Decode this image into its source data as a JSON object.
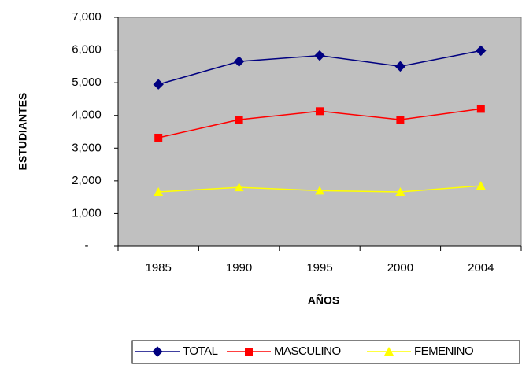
{
  "chart_data": {
    "type": "line",
    "y_label": "ESTUDIANTES",
    "x_label": "AÑOS",
    "categories": [
      "1985",
      "1990",
      "1995",
      "2000",
      "2004"
    ],
    "series": [
      {
        "name": "TOTAL",
        "color": "#000080",
        "marker": "diamond",
        "values": [
          4950,
          5650,
          5830,
          5500,
          5980
        ]
      },
      {
        "name": "MASCULINO",
        "color": "#ff0000",
        "marker": "square",
        "values": [
          3320,
          3870,
          4130,
          3870,
          4200
        ]
      },
      {
        "name": "FEMENINO",
        "color": "#ffff00",
        "marker": "triangle",
        "values": [
          1660,
          1800,
          1700,
          1660,
          1850
        ]
      }
    ],
    "ylim": [
      0,
      7000
    ],
    "yticks": [
      {
        "value": 0,
        "label": "-"
      },
      {
        "value": 1000,
        "label": "1,000"
      },
      {
        "value": 2000,
        "label": "2,000"
      },
      {
        "value": 3000,
        "label": "3,000"
      },
      {
        "value": 4000,
        "label": "4,000"
      },
      {
        "value": 5000,
        "label": "5,000"
      },
      {
        "value": 6000,
        "label": "6,000"
      },
      {
        "value": 7000,
        "label": "7,000"
      }
    ],
    "plot_background": "#c0c0c0",
    "grid": false,
    "legend": "bottom"
  }
}
